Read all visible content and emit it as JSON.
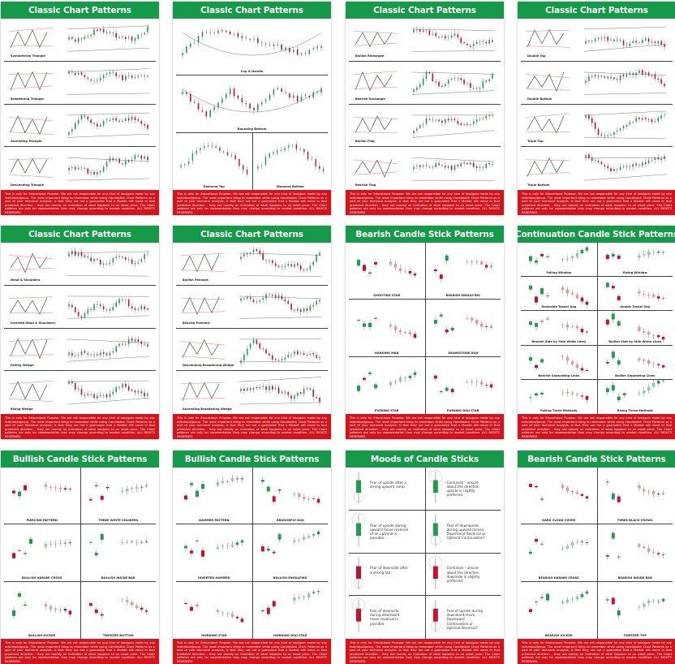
{
  "disclaimer": "This is only for Educational Purpose. We are not responsible for any kind of loss/gain made by any individual/group. The most important thing to remember while using Candlestick Chart Patterns as a part of your technical analysis, is that they are not a guarantee that a Market will move in that predicted direction - they are merely an indication of what happens to an asset price. The Chart patterns are only for representation they may change according to market condition. ALL RIGHTS RESERVED.",
  "colors": {
    "header_green": "#17994a",
    "footer_red": "#d3141c",
    "bull": "#1e9e4a",
    "bear": "#c8102e"
  },
  "posters": [
    {
      "title": "Classic Chart Patterns",
      "kind": "classic",
      "panels": [
        "Symmetrical Triangle",
        "Broadening Triangle",
        "Ascending Triangle",
        "Descending Triangle"
      ]
    },
    {
      "title": "Classic Chart Patterns",
      "kind": "classic-mixed",
      "panels": [
        "Cup & Handle",
        "Rounding Bottom",
        "Diamond Top",
        "Diamond Bottom"
      ]
    },
    {
      "title": "Classic Chart Patterns",
      "kind": "classic",
      "panels": [
        "Bullish Rectangle",
        "Bearish Rectangle",
        "Bullish Flag",
        "Bearish Flag"
      ]
    },
    {
      "title": "Classic Chart Patterns",
      "kind": "classic",
      "panels": [
        "Double Top",
        "Double Bottom",
        "Triple Top",
        "Triple Bottom"
      ]
    },
    {
      "title": "Classic Chart Patterns",
      "kind": "classic",
      "panels": [
        "Head & Shoulders",
        "Inverted Head & Shoulders",
        "Falling Wedge",
        "Rising Wedge"
      ]
    },
    {
      "title": "Classic Chart Patterns",
      "kind": "classic",
      "panels": [
        "Bullish Pennant",
        "Bearish Pennant",
        "Descending Broadening Wedge",
        "Ascending Broadening Wedge"
      ]
    },
    {
      "title": "Bearish Candle Stick Patterns",
      "kind": "candles",
      "panels": [
        "SHOOTING STAR",
        "BEARISH ENGULFING",
        "HANGING MAN",
        "GRAVESTONE DOJI",
        "EVENING STAR",
        "EVENING DOJI STAR"
      ]
    },
    {
      "title": "Continuation Candle Stick Patterns",
      "kind": "candles",
      "panels": [
        "Falling Window",
        "Rising Window",
        "Downside Tasuki Gap",
        "Upside Tasuki Gap",
        "Bearish Side by Side White Lines",
        "Bullish Side by Side White Lines",
        "Bearish Separating Lines",
        "Bullish Separating Lines",
        "Falling Three Methods",
        "Rising Three Methods"
      ]
    },
    {
      "title": "Bullish Candle Stick Patterns",
      "kind": "candles",
      "panels": [
        "PIERCING PATTERN",
        "THREE WHITE SOLDIERS",
        "BULLISH HARAMI CROSS",
        "BULLISH INSIDE BAR",
        "BULLISH KICKER",
        "TWEEZER BOTTOM"
      ]
    },
    {
      "title": "Bullish Candle Stick Patterns",
      "kind": "candles",
      "panels": [
        "HAMMER PATTERN",
        "DRAGONFLY DOJI",
        "INVERTED HAMMER",
        "BULLISH ENGULFING",
        "MORNING STAR",
        "MORNING DOJI STAR"
      ]
    },
    {
      "title": "Moods of Candle Sticks",
      "kind": "moods",
      "panels": [
        "Fear of upside after a strong upward ramp.",
        "Confusion - unsure about the direction upside is slightly preferred.",
        "Fear of upside during upward move reversal of an uptrend is possible.",
        "Fear of downwards during upward moves. Downtrend Reversal or Uptrend Continuation?",
        "Fear of downside after a strong fall.",
        "Confusion - unsure about the direction downside is slightly preferred.",
        "Fear of downside during downward move reversal is possible.",
        "Fear of upside during downward move. Downward Continuation or Uptrend Reversal?"
      ]
    },
    {
      "title": "Bearish Candle Stick Patterns",
      "kind": "candles",
      "panels": [
        "DARK CLOUD COVER",
        "THREE BLACK CROWS",
        "BEARISH HARAMI CROSS",
        "BEARISH INSIDE BAR",
        "BEARISH KICKER",
        "TWEEZER TOP"
      ]
    }
  ]
}
